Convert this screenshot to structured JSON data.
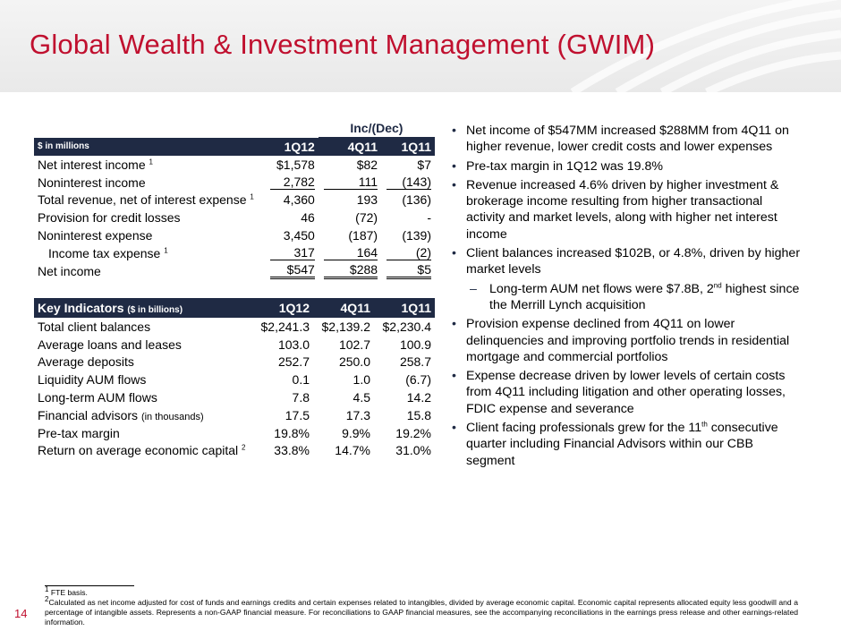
{
  "title": "Global Wealth & Investment Management (GWIM)",
  "page_number": "14",
  "financials": {
    "group_header": "Inc/(Dec)",
    "unit_label": "$ in millions",
    "columns": [
      "1Q12",
      "4Q11",
      "1Q11"
    ],
    "rows": [
      {
        "label": "Net interest income",
        "sup": "1",
        "values": [
          "$1,578",
          "$82",
          "$7"
        ]
      },
      {
        "label": "Noninterest income",
        "sup": "",
        "values": [
          "2,782",
          "111",
          "(143)"
        ]
      },
      {
        "label": "Total revenue, net of interest expense",
        "sup": "1",
        "values": [
          "4,360",
          "193",
          "(136)"
        ]
      },
      {
        "label": "Provision for credit losses",
        "sup": "",
        "values": [
          "46",
          "(72)",
          "-"
        ]
      },
      {
        "label": "Noninterest expense",
        "sup": "",
        "values": [
          "3,450",
          "(187)",
          "(139)"
        ]
      },
      {
        "label": "Income tax expense",
        "sup": "1",
        "values": [
          "317",
          "164",
          "(2)"
        ]
      },
      {
        "label": "Net income",
        "sup": "",
        "values": [
          "$547",
          "$288",
          "$5"
        ]
      }
    ]
  },
  "key_indicators": {
    "header_label": "Key Indicators",
    "header_unit": "($ in billions)",
    "columns": [
      "1Q12",
      "4Q11",
      "1Q11"
    ],
    "rows": [
      {
        "label": "Total client balances",
        "note": "",
        "sup": "",
        "values": [
          "$2,241.3",
          "$2,139.2",
          "$2,230.4"
        ]
      },
      {
        "label": "Average loans and leases",
        "note": "",
        "sup": "",
        "values": [
          "103.0",
          "102.7",
          "100.9"
        ]
      },
      {
        "label": "Average deposits",
        "note": "",
        "sup": "",
        "values": [
          "252.7",
          "250.0",
          "258.7"
        ]
      },
      {
        "label": "Liquidity AUM flows",
        "note": "",
        "sup": "",
        "values": [
          "0.1",
          "1.0",
          "(6.7)"
        ]
      },
      {
        "label": "Long-term AUM flows",
        "note": "",
        "sup": "",
        "values": [
          "7.8",
          "4.5",
          "14.2"
        ]
      },
      {
        "label": "Financial advisors",
        "note": "(in thousands)",
        "sup": "",
        "values": [
          "17.5",
          "17.3",
          "15.8"
        ]
      },
      {
        "label": "Pre-tax margin",
        "note": "",
        "sup": "",
        "values": [
          "19.8%",
          "9.9%",
          "19.2%"
        ]
      },
      {
        "label": "Return on average economic capital",
        "note": "",
        "sup": "2",
        "values": [
          "33.8%",
          "14.7%",
          "31.0%"
        ]
      }
    ]
  },
  "bullets": {
    "b1": "Net income of $547MM increased $288MM from 4Q11 on higher revenue, lower credit costs and lower expenses",
    "b2": "Pre-tax margin in 1Q12 was 19.8%",
    "b3": "Revenue increased 4.6% driven by higher investment & brokerage income resulting from higher transactional activity and market levels, along with higher net interest income",
    "b4": "Client balances increased $102B, or 4.8%, driven by higher market levels",
    "b4_sub_a": "Long-term AUM net flows were $7.8B, 2",
    "b4_sub_sup": "nd",
    "b4_sub_b": " highest since the Merrill Lynch acquisition",
    "b5": "Provision expense declined from 4Q11 on lower delinquencies and improving portfolio trends in residential mortgage and commercial portfolios",
    "b6": "Expense decrease driven by lower levels of certain costs from 4Q11 including litigation and other operating losses, FDIC expense and severance",
    "b7_a": "Client facing professionals grew for the 11",
    "b7_sup": "th",
    "b7_b": " consecutive quarter including Financial Advisors within our CBB segment"
  },
  "footnotes": {
    "fn1_num": "1",
    "fn1": " FTE basis.",
    "fn2_num": "2",
    "fn2": "Calculated as net income adjusted for cost of funds and earnings credits and certain expenses related to intangibles, divided by average economic capital. Economic capital represents allocated equity less goodwill and a percentage of intangible assets. Represents a non-GAAP financial measure. For reconciliations to GAAP financial measures, see the accompanying reconciliations in the earnings press release and other earnings-related information."
  }
}
